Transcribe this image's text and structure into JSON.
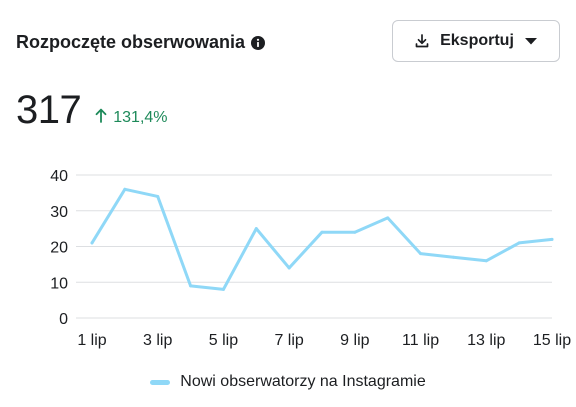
{
  "header": {
    "title": "Rozpoczęte obserwowania",
    "info_icon": "info-icon"
  },
  "export_button": {
    "label": "Eksportuj",
    "icon": "download-icon",
    "caret": "caret-down-icon"
  },
  "metric": {
    "value": "317",
    "change": "131,4%",
    "change_direction": "up",
    "change_color": "#1e8a5a"
  },
  "colors": {
    "series": "#8fd8f7",
    "grid": "#dddfe2",
    "text": "#1c1e21"
  },
  "chart_data": {
    "type": "line",
    "x_ticks": [
      "1 lip",
      "3 lip",
      "5 lip",
      "7 lip",
      "9 lip",
      "11 lip",
      "13 lip",
      "15 lip"
    ],
    "x": [
      "1 lip",
      "2 lip",
      "3 lip",
      "4 lip",
      "5 lip",
      "6 lip",
      "7 lip",
      "8 lip",
      "9 lip",
      "10 lip",
      "11 lip",
      "12 lip",
      "13 lip",
      "14 lip",
      "15 lip"
    ],
    "series": [
      {
        "name": "Nowi obserwatorzy na Instagramie",
        "values": [
          21,
          36,
          34,
          9,
          8,
          25,
          14,
          24,
          24,
          28,
          18,
          17,
          16,
          21,
          22
        ]
      }
    ],
    "y_ticks": [
      0,
      10,
      20,
      30,
      40
    ],
    "ylim": [
      0,
      40
    ],
    "grid": true,
    "legend_position": "bottom-center"
  }
}
